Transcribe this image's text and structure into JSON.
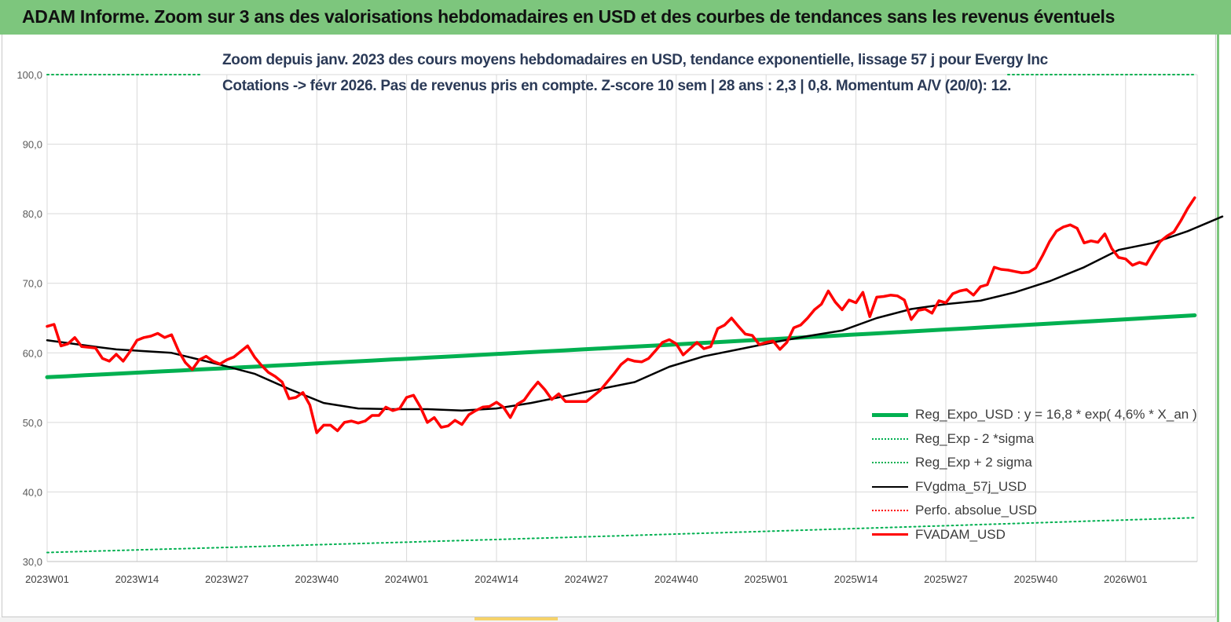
{
  "banner": {
    "title": "ADAM Informe. Zoom sur 3 ans des valorisations hebdomadaires en USD et des courbes de tendances sans les revenus éventuels"
  },
  "chart_data": {
    "type": "line",
    "title_line1": "Zoom depuis janv. 2023 des cours moyens hebdomadaires en USD, tendance exponentielle, lissage 57 j pour Evergy Inc",
    "title_line2": "Cotations -> févr 2026. Pas de revenus pris en compte. Z-score 10 sem | 28 ans : 2,3 | 0,8. Momentum A/V (20/0): 12.",
    "ylim": [
      30,
      100
    ],
    "y_ticks": [
      "30,0",
      "40,0",
      "50,0",
      "60,0",
      "70,0",
      "80,0",
      "90,0",
      "100,0"
    ],
    "x_ticks": [
      "2023W01",
      "2023W14",
      "2023W27",
      "2023W40",
      "2024W01",
      "2024W14",
      "2024W27",
      "2024W40",
      "2025W01",
      "2025W14",
      "2025W27",
      "2025W40",
      "2026W01"
    ],
    "x_tick_spacing_weeks": 13,
    "week_count": 160,
    "grid": true,
    "legend_position": "bottom-right",
    "series": [
      {
        "name": "Reg_Expo_USD : y = 16,8 * exp( 4,6% *  X_an )",
        "color": "#00b050",
        "style": "solid-thick",
        "start": 56.5,
        "end": 65.4
      },
      {
        "name": "Reg_Exp - 2 *sigma",
        "color": "#00b050",
        "style": "dotted",
        "start": 31.3,
        "end": 36.3
      },
      {
        "name": "Reg_Exp + 2 sigma",
        "color": "#00b050",
        "style": "dotted",
        "start": 100.0,
        "end": 100.0
      },
      {
        "name": "FVgdma_57j_USD",
        "color": "#000000",
        "style": "solid",
        "keypoints": [
          [
            0,
            61.8
          ],
          [
            6,
            61.0
          ],
          [
            10,
            60.5
          ],
          [
            18,
            60.0
          ],
          [
            25,
            58.3
          ],
          [
            30,
            57.0
          ],
          [
            35,
            54.8
          ],
          [
            40,
            52.8
          ],
          [
            45,
            52.0
          ],
          [
            50,
            51.9
          ],
          [
            55,
            51.9
          ],
          [
            60,
            51.7
          ],
          [
            65,
            52.0
          ],
          [
            70,
            52.8
          ],
          [
            75,
            53.8
          ],
          [
            80,
            54.8
          ],
          [
            85,
            55.8
          ],
          [
            90,
            58.0
          ],
          [
            95,
            59.5
          ],
          [
            100,
            60.5
          ],
          [
            105,
            61.5
          ],
          [
            110,
            62.4
          ],
          [
            115,
            63.2
          ],
          [
            120,
            65.0
          ],
          [
            125,
            66.3
          ],
          [
            130,
            67.0
          ],
          [
            135,
            67.5
          ],
          [
            140,
            68.7
          ],
          [
            145,
            70.3
          ],
          [
            150,
            72.3
          ],
          [
            155,
            74.8
          ],
          [
            160,
            75.8
          ],
          [
            165,
            77.5
          ],
          [
            170,
            79.6
          ]
        ]
      },
      {
        "name": "Perfo. absolue_USD",
        "color": "#ff0000",
        "style": "dotted",
        "values": []
      },
      {
        "name": "FVADAM_USD",
        "color": "#ff0000",
        "style": "solid-thick",
        "keypoints": [
          [
            0,
            63.8
          ],
          [
            1,
            64.1
          ],
          [
            2,
            61.0
          ],
          [
            3,
            61.3
          ],
          [
            4,
            62.2
          ],
          [
            5,
            60.9
          ],
          [
            7,
            60.7
          ],
          [
            8,
            59.2
          ],
          [
            9,
            58.8
          ],
          [
            10,
            59.8
          ],
          [
            11,
            58.8
          ],
          [
            12,
            60.2
          ],
          [
            13,
            61.8
          ],
          [
            14,
            62.2
          ],
          [
            15,
            62.4
          ],
          [
            16,
            62.8
          ],
          [
            17,
            62.2
          ],
          [
            18,
            62.6
          ],
          [
            19,
            60.3
          ],
          [
            20,
            58.6
          ],
          [
            21,
            57.6
          ],
          [
            22,
            59.0
          ],
          [
            23,
            59.5
          ],
          [
            24,
            58.8
          ],
          [
            25,
            58.4
          ],
          [
            26,
            59.0
          ],
          [
            27,
            59.4
          ],
          [
            28,
            60.2
          ],
          [
            29,
            61.0
          ],
          [
            30,
            59.4
          ],
          [
            31,
            58.2
          ],
          [
            32,
            57.2
          ],
          [
            33,
            56.6
          ],
          [
            34,
            55.8
          ],
          [
            35,
            53.4
          ],
          [
            36,
            53.6
          ],
          [
            37,
            54.3
          ],
          [
            38,
            52.5
          ],
          [
            39,
            48.5
          ],
          [
            40,
            49.6
          ],
          [
            41,
            49.6
          ],
          [
            42,
            48.8
          ],
          [
            43,
            50.0
          ],
          [
            44,
            50.2
          ],
          [
            45,
            49.9
          ],
          [
            46,
            50.2
          ],
          [
            47,
            51.0
          ],
          [
            48,
            51.0
          ],
          [
            49,
            52.2
          ],
          [
            50,
            51.7
          ],
          [
            51,
            52.0
          ],
          [
            52,
            53.6
          ],
          [
            53,
            53.9
          ],
          [
            54,
            52.2
          ],
          [
            55,
            50.0
          ],
          [
            56,
            50.7
          ],
          [
            57,
            49.3
          ],
          [
            58,
            49.5
          ],
          [
            59,
            50.3
          ],
          [
            60,
            49.7
          ],
          [
            61,
            51.1
          ],
          [
            62,
            51.7
          ],
          [
            63,
            52.2
          ],
          [
            64,
            52.3
          ],
          [
            65,
            52.9
          ],
          [
            66,
            52.2
          ],
          [
            67,
            50.7
          ],
          [
            68,
            52.6
          ],
          [
            69,
            53.2
          ],
          [
            70,
            54.6
          ],
          [
            71,
            55.8
          ],
          [
            72,
            54.7
          ],
          [
            73,
            53.3
          ],
          [
            74,
            54.1
          ],
          [
            75,
            53.0
          ],
          [
            76,
            53.0
          ],
          [
            77,
            53.0
          ],
          [
            78,
            53.0
          ],
          [
            79,
            53.8
          ],
          [
            80,
            54.6
          ],
          [
            81,
            55.8
          ],
          [
            82,
            57.0
          ],
          [
            83,
            58.3
          ],
          [
            84,
            59.1
          ],
          [
            85,
            58.8
          ],
          [
            86,
            58.7
          ],
          [
            87,
            59.2
          ],
          [
            88,
            60.3
          ],
          [
            89,
            61.5
          ],
          [
            90,
            61.9
          ],
          [
            91,
            61.3
          ],
          [
            92,
            59.7
          ],
          [
            93,
            60.6
          ],
          [
            94,
            61.5
          ],
          [
            95,
            60.6
          ],
          [
            96,
            60.9
          ],
          [
            97,
            63.5
          ],
          [
            98,
            64.0
          ],
          [
            99,
            65.0
          ],
          [
            100,
            63.8
          ],
          [
            101,
            62.7
          ],
          [
            102,
            62.5
          ],
          [
            103,
            61.2
          ],
          [
            104,
            61.5
          ],
          [
            105,
            61.7
          ],
          [
            106,
            60.5
          ],
          [
            107,
            61.5
          ],
          [
            108,
            63.6
          ],
          [
            109,
            64.0
          ],
          [
            110,
            65.0
          ],
          [
            111,
            66.2
          ],
          [
            112,
            67.0
          ],
          [
            113,
            68.9
          ],
          [
            114,
            67.3
          ],
          [
            115,
            66.2
          ],
          [
            116,
            67.6
          ],
          [
            117,
            67.2
          ],
          [
            118,
            68.7
          ],
          [
            119,
            65.2
          ],
          [
            120,
            68.0
          ],
          [
            121,
            68.1
          ],
          [
            122,
            68.3
          ],
          [
            123,
            68.2
          ],
          [
            124,
            67.6
          ],
          [
            125,
            64.8
          ],
          [
            126,
            66.1
          ],
          [
            127,
            66.3
          ],
          [
            128,
            65.7
          ],
          [
            129,
            67.5
          ],
          [
            130,
            67.2
          ],
          [
            131,
            68.5
          ],
          [
            132,
            68.9
          ],
          [
            133,
            69.1
          ],
          [
            134,
            68.3
          ],
          [
            135,
            69.5
          ],
          [
            136,
            69.8
          ],
          [
            137,
            72.3
          ],
          [
            138,
            72.0
          ],
          [
            139,
            71.9
          ],
          [
            140,
            71.7
          ],
          [
            141,
            71.5
          ],
          [
            142,
            71.6
          ],
          [
            143,
            72.2
          ],
          [
            144,
            74.0
          ],
          [
            145,
            76.0
          ],
          [
            146,
            77.5
          ],
          [
            147,
            78.1
          ],
          [
            148,
            78.4
          ],
          [
            149,
            77.9
          ],
          [
            150,
            75.8
          ],
          [
            151,
            76.1
          ],
          [
            152,
            75.9
          ],
          [
            153,
            77.1
          ],
          [
            154,
            75.0
          ],
          [
            155,
            73.7
          ],
          [
            156,
            73.5
          ],
          [
            157,
            72.6
          ],
          [
            158,
            73.0
          ],
          [
            159,
            72.7
          ],
          [
            160,
            74.4
          ],
          [
            161,
            76.0
          ],
          [
            162,
            76.8
          ],
          [
            163,
            77.4
          ],
          [
            164,
            79.0
          ],
          [
            165,
            80.8
          ],
          [
            166,
            82.3
          ]
        ]
      }
    ]
  }
}
